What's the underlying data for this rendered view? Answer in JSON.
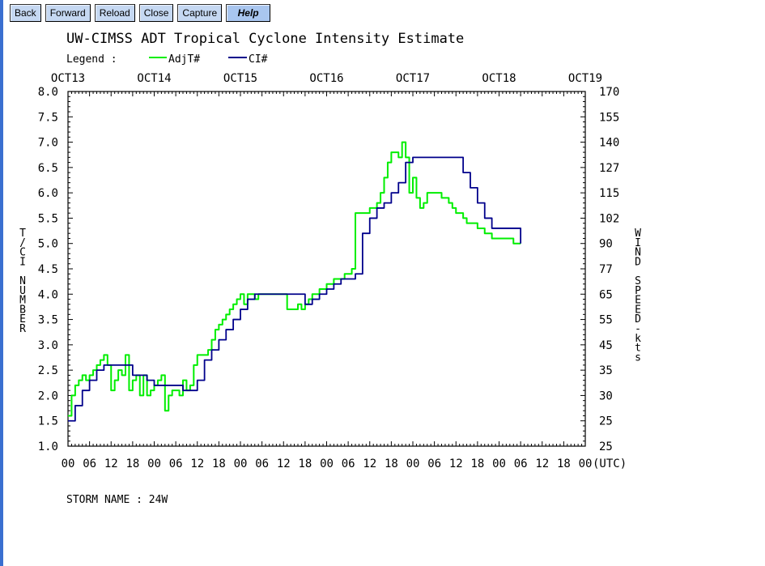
{
  "toolbar": {
    "buttons": [
      "Back",
      "Forward",
      "Reload",
      "Close",
      "Capture"
    ],
    "help": "Help"
  },
  "chart_data": {
    "type": "line",
    "title": "UW-CIMSS ADT Tropical Cyclone Intensity Estimate",
    "legend_label": "Legend :",
    "legend_placement": "top-left",
    "date_labels": [
      "OCT13",
      "OCT14",
      "OCT15",
      "OCT16",
      "OCT17",
      "OCT18",
      "OCT19"
    ],
    "hour_labels": [
      "00",
      "06",
      "12",
      "18",
      "00",
      "06",
      "12",
      "18",
      "00",
      "06",
      "12",
      "18",
      "00",
      "06",
      "12",
      "18",
      "00",
      "06",
      "12",
      "18",
      "00",
      "06",
      "12",
      "18",
      "00"
    ],
    "utc_label": "(UTC)",
    "xlim": [
      0,
      144
    ],
    "ylim": [
      1.0,
      8.0
    ],
    "ylabel": "T/CI NUMBER",
    "y2label": "WIND SPEED-kts",
    "y_ticks": [
      "1.0",
      "1.5",
      "2.0",
      "2.5",
      "3.0",
      "3.5",
      "4.0",
      "4.5",
      "5.0",
      "5.5",
      "6.0",
      "6.5",
      "7.0",
      "7.5",
      "8.0"
    ],
    "y2_ticks": [
      "25",
      "25",
      "30",
      "35",
      "45",
      "55",
      "65",
      "77",
      "90",
      "102",
      "115",
      "127",
      "140",
      "155",
      "170"
    ],
    "grid": false,
    "storm_label": "STORM NAME : 24W",
    "series": [
      {
        "name": "AdjT#",
        "color": "#00ee00",
        "x": [
          0,
          1,
          2,
          3,
          4,
          5,
          6,
          7,
          8,
          9,
          10,
          11,
          12,
          13,
          14,
          15,
          16,
          17,
          18,
          19,
          20,
          21,
          22,
          23,
          24,
          25,
          26,
          27,
          28,
          29,
          30,
          31,
          32,
          33,
          34,
          35,
          36,
          37,
          38,
          39,
          40,
          41,
          42,
          43,
          44,
          45,
          46,
          47,
          48,
          49,
          50,
          51,
          52,
          53,
          54,
          55,
          56,
          57,
          58,
          59,
          60,
          61,
          62,
          63,
          64,
          65,
          66,
          67,
          68,
          69,
          70,
          71,
          72,
          73,
          74,
          75,
          76,
          77,
          78,
          79,
          80,
          81,
          82,
          83,
          84,
          85,
          86,
          87,
          88,
          89,
          90,
          91,
          92,
          93,
          94,
          95,
          96,
          97,
          98,
          99,
          100,
          101,
          102,
          103,
          104,
          105,
          106,
          107,
          108,
          109,
          110,
          111,
          112,
          114,
          116,
          118,
          124,
          126
        ],
        "values": [
          1.6,
          2.0,
          2.2,
          2.3,
          2.4,
          2.3,
          2.4,
          2.5,
          2.6,
          2.7,
          2.8,
          2.6,
          2.1,
          2.3,
          2.5,
          2.4,
          2.8,
          2.1,
          2.3,
          2.4,
          2.0,
          2.4,
          2.0,
          2.1,
          2.2,
          2.3,
          2.4,
          1.7,
          2.0,
          2.1,
          2.1,
          2.0,
          2.3,
          2.1,
          2.2,
          2.6,
          2.8,
          2.8,
          2.8,
          2.9,
          3.1,
          3.3,
          3.4,
          3.5,
          3.6,
          3.7,
          3.8,
          3.9,
          4.0,
          3.8,
          4.0,
          4.0,
          3.9,
          4.0,
          4.0,
          4.0,
          4.0,
          4.0,
          4.0,
          4.0,
          4.0,
          3.7,
          3.7,
          3.7,
          3.8,
          3.7,
          3.8,
          3.9,
          4.0,
          4.0,
          4.1,
          4.1,
          4.2,
          4.2,
          4.3,
          4.3,
          4.3,
          4.4,
          4.4,
          4.5,
          5.6,
          5.6,
          5.6,
          5.6,
          5.7,
          5.7,
          5.8,
          6.0,
          6.3,
          6.6,
          6.8,
          6.8,
          6.7,
          7.0,
          6.7,
          6.0,
          6.3,
          5.9,
          5.7,
          5.8,
          6.0,
          6.0,
          6.0,
          6.0,
          5.9,
          5.9,
          5.8,
          5.7,
          5.6,
          5.6,
          5.5,
          5.4,
          5.4,
          5.3,
          5.2,
          5.1,
          5.0,
          5.0
        ],
        "note_hidden": ""
      },
      {
        "name": "CI#",
        "color": "#00008b",
        "x": [
          0,
          2,
          4,
          6,
          8,
          10,
          12,
          14,
          16,
          18,
          20,
          22,
          24,
          26,
          28,
          30,
          32,
          34,
          36,
          38,
          40,
          42,
          44,
          46,
          48,
          50,
          52,
          54,
          56,
          58,
          60,
          62,
          64,
          66,
          68,
          70,
          72,
          74,
          76,
          78,
          80,
          82,
          84,
          86,
          88,
          90,
          92,
          94,
          96,
          98,
          100,
          102,
          104,
          106,
          108,
          110,
          112,
          114,
          116,
          118,
          126
        ],
        "values": [
          1.5,
          1.8,
          2.1,
          2.3,
          2.5,
          2.6,
          2.6,
          2.6,
          2.6,
          2.4,
          2.4,
          2.3,
          2.2,
          2.2,
          2.2,
          2.2,
          2.1,
          2.1,
          2.3,
          2.7,
          2.9,
          3.1,
          3.3,
          3.5,
          3.7,
          3.9,
          4.0,
          4.0,
          4.0,
          4.0,
          4.0,
          4.0,
          4.0,
          3.8,
          3.9,
          4.0,
          4.1,
          4.2,
          4.3,
          4.3,
          4.4,
          5.2,
          5.5,
          5.7,
          5.8,
          6.0,
          6.2,
          6.6,
          6.7,
          6.7,
          6.7,
          6.7,
          6.7,
          6.7,
          6.7,
          6.4,
          6.1,
          5.8,
          5.5,
          5.3,
          5.0
        ]
      }
    ]
  }
}
